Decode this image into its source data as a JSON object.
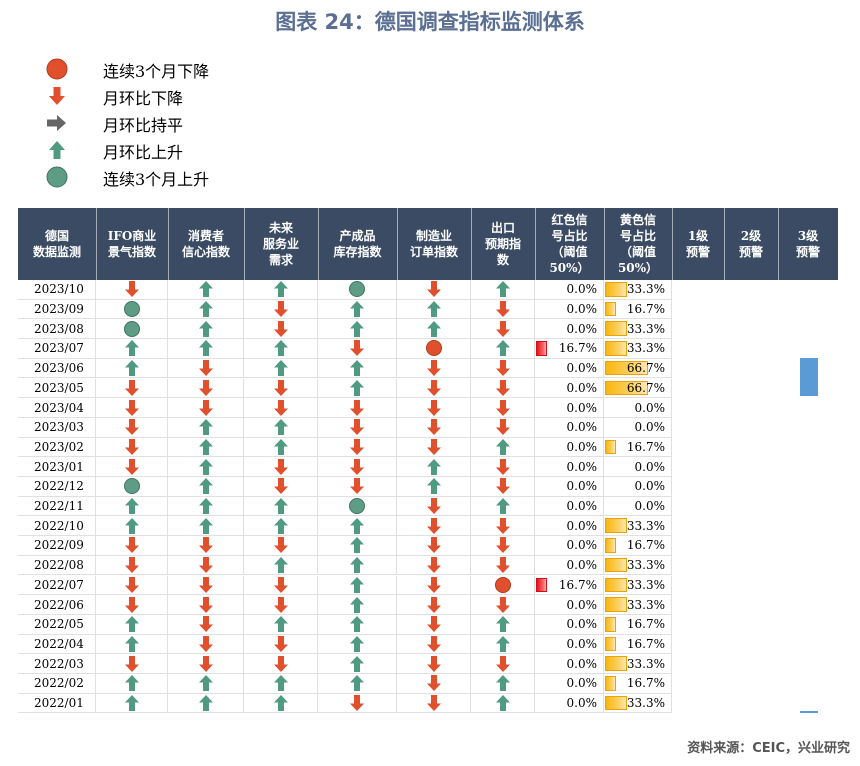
{
  "title": "图表 24：德国调查指标监测体系",
  "source": "资料来源：CEIC，兴业研究",
  "colors": {
    "header_bg": "#3b4b64",
    "down_red": "#e0502c",
    "up_green": "#4f9a80",
    "flat_gray": "#666666",
    "red_bar": "#e8121e",
    "yellow_bar": "#f9b60e",
    "alert_blue": "#5b9bd5"
  },
  "legend": [
    {
      "icon": "circle-red-icon",
      "label": "连续3个月下降"
    },
    {
      "icon": "arrow-down-icon",
      "label": "月环比下降"
    },
    {
      "icon": "arrow-right-icon",
      "label": "月环比持平"
    },
    {
      "icon": "arrow-up-icon",
      "label": "月环比上升"
    },
    {
      "icon": "circle-green-icon",
      "label": "连续3个月上升"
    }
  ],
  "chart_data": {
    "type": "table",
    "columns": [
      {
        "key": "date",
        "label": "德国\n数据监测"
      },
      {
        "key": "ifo",
        "label": "IFO商业\n景气指数"
      },
      {
        "key": "consumer",
        "label": "消费者\n信心指数"
      },
      {
        "key": "services",
        "label": "未来\n服务业\n需求"
      },
      {
        "key": "inventory",
        "label": "产成品\n库存指数"
      },
      {
        "key": "orders",
        "label": "制造业\n订单指数"
      },
      {
        "key": "export",
        "label": "出口\n预期指\n数"
      },
      {
        "key": "red",
        "label": "红色信\n号占比\n（阈值\n50%）"
      },
      {
        "key": "yellow",
        "label": "黄色信\n号占比\n（阈值\n50%）"
      },
      {
        "key": "l1",
        "label": "1级\n预警"
      },
      {
        "key": "l2",
        "label": "2级\n预警"
      },
      {
        "key": "l3",
        "label": "3级\n预警"
      }
    ],
    "signal_codes": {
      "U": "月环比上升",
      "D": "月环比下降",
      "CU": "连续3个月上升",
      "CD": "连续3个月下降"
    },
    "rows": [
      {
        "date": "2023/10",
        "signals": [
          "D",
          "U",
          "U",
          "CU",
          "D",
          "U"
        ],
        "red": "0.0%",
        "yellow": "33.3%"
      },
      {
        "date": "2023/09",
        "signals": [
          "CU",
          "U",
          "D",
          "U",
          "U",
          "D"
        ],
        "red": "0.0%",
        "yellow": "16.7%"
      },
      {
        "date": "2023/08",
        "signals": [
          "CU",
          "U",
          "D",
          "U",
          "U",
          "D"
        ],
        "red": "0.0%",
        "yellow": "33.3%"
      },
      {
        "date": "2023/07",
        "signals": [
          "U",
          "U",
          "U",
          "D",
          "CD",
          "U"
        ],
        "red": "16.7%",
        "yellow": "33.3%"
      },
      {
        "date": "2023/06",
        "signals": [
          "U",
          "D",
          "U",
          "U",
          "D",
          "D"
        ],
        "red": "0.0%",
        "yellow": "66.7%"
      },
      {
        "date": "2023/05",
        "signals": [
          "D",
          "D",
          "D",
          "U",
          "D",
          "D"
        ],
        "red": "0.0%",
        "yellow": "66.7%"
      },
      {
        "date": "2023/04",
        "signals": [
          "D",
          "D",
          "D",
          "D",
          "D",
          "D"
        ],
        "red": "0.0%",
        "yellow": "0.0%"
      },
      {
        "date": "2023/03",
        "signals": [
          "D",
          "U",
          "U",
          "D",
          "D",
          "D"
        ],
        "red": "0.0%",
        "yellow": "0.0%"
      },
      {
        "date": "2023/02",
        "signals": [
          "D",
          "U",
          "U",
          "D",
          "D",
          "U"
        ],
        "red": "0.0%",
        "yellow": "16.7%"
      },
      {
        "date": "2023/01",
        "signals": [
          "D",
          "U",
          "D",
          "D",
          "U",
          "D"
        ],
        "red": "0.0%",
        "yellow": "0.0%"
      },
      {
        "date": "2022/12",
        "signals": [
          "CU",
          "U",
          "D",
          "D",
          "U",
          "D"
        ],
        "red": "0.0%",
        "yellow": "0.0%"
      },
      {
        "date": "2022/11",
        "signals": [
          "U",
          "U",
          "U",
          "CU",
          "D",
          "U"
        ],
        "red": "0.0%",
        "yellow": "0.0%"
      },
      {
        "date": "2022/10",
        "signals": [
          "U",
          "U",
          "U",
          "U",
          "D",
          "D"
        ],
        "red": "0.0%",
        "yellow": "33.3%"
      },
      {
        "date": "2022/09",
        "signals": [
          "D",
          "D",
          "D",
          "U",
          "D",
          "D"
        ],
        "red": "0.0%",
        "yellow": "16.7%"
      },
      {
        "date": "2022/08",
        "signals": [
          "D",
          "D",
          "U",
          "U",
          "D",
          "D"
        ],
        "red": "0.0%",
        "yellow": "33.3%"
      },
      {
        "date": "2022/07",
        "signals": [
          "D",
          "D",
          "D",
          "U",
          "D",
          "CD"
        ],
        "red": "16.7%",
        "yellow": "33.3%"
      },
      {
        "date": "2022/06",
        "signals": [
          "D",
          "D",
          "D",
          "U",
          "D",
          "D"
        ],
        "red": "0.0%",
        "yellow": "33.3%"
      },
      {
        "date": "2022/05",
        "signals": [
          "U",
          "D",
          "U",
          "U",
          "D",
          "U"
        ],
        "red": "0.0%",
        "yellow": "16.7%"
      },
      {
        "date": "2022/04",
        "signals": [
          "U",
          "D",
          "D",
          "U",
          "D",
          "U"
        ],
        "red": "0.0%",
        "yellow": "16.7%"
      },
      {
        "date": "2022/03",
        "signals": [
          "D",
          "D",
          "D",
          "U",
          "D",
          "D"
        ],
        "red": "0.0%",
        "yellow": "33.3%"
      },
      {
        "date": "2022/02",
        "signals": [
          "U",
          "U",
          "U",
          "U",
          "D",
          "U"
        ],
        "red": "0.0%",
        "yellow": "16.7%"
      },
      {
        "date": "2022/01",
        "signals": [
          "U",
          "U",
          "U",
          "D",
          "D",
          "U"
        ],
        "red": "0.0%",
        "yellow": "33.3%"
      }
    ]
  }
}
